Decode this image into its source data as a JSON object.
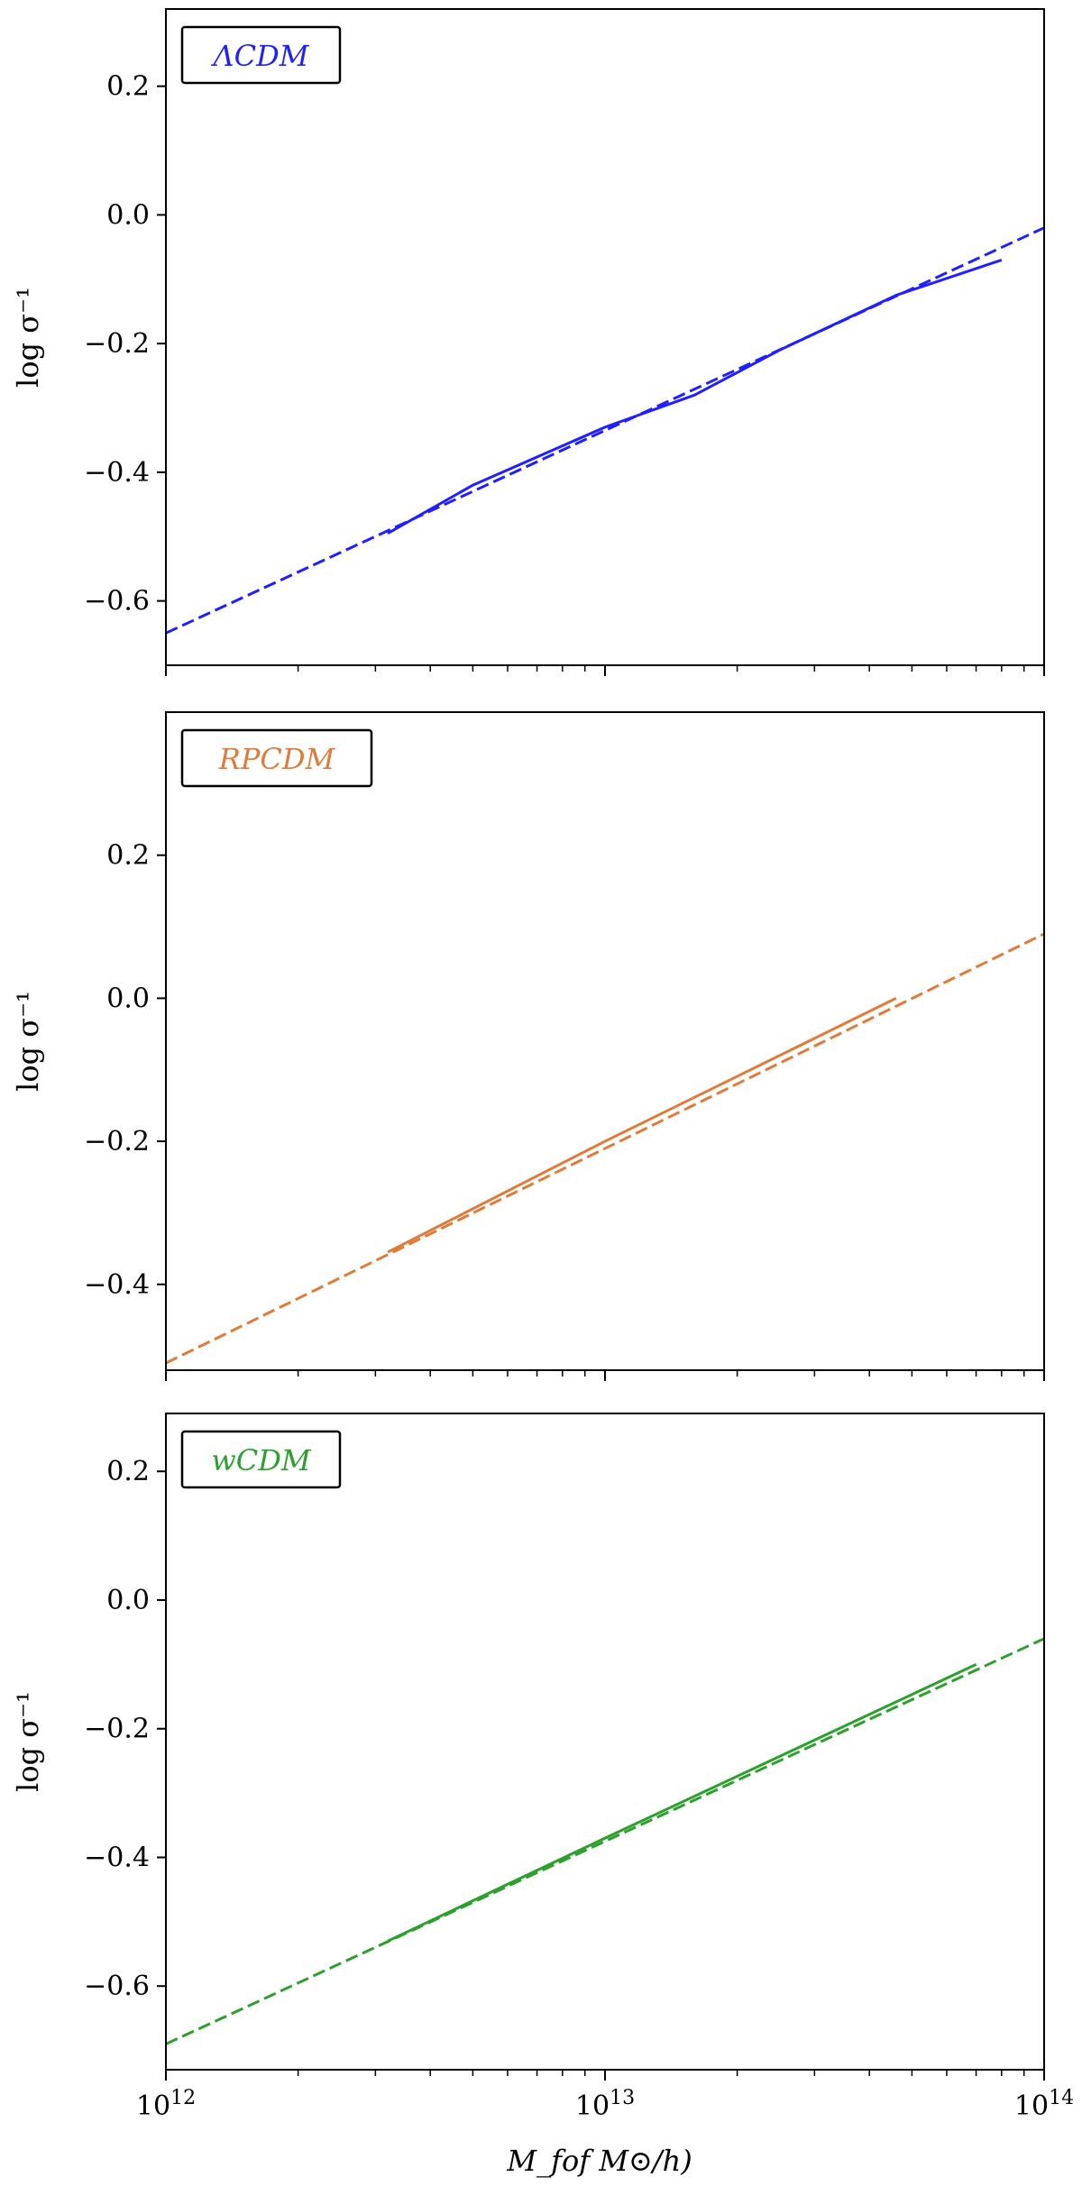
{
  "chart_data": [
    {
      "type": "line",
      "legend": "ΛCDM",
      "legend_position": "top-left",
      "color": "#1f1fff",
      "xscale": "log",
      "xlim": [
        1000000000000.0,
        100000000000000.0
      ],
      "ylim": [
        -0.7,
        0.32
      ],
      "yticks": [
        "0.2",
        "0.0",
        "−0.2",
        "−0.4",
        "−0.6"
      ],
      "ytick_values": [
        0.2,
        0.0,
        -0.2,
        -0.4,
        -0.6
      ],
      "ylabel": "log σ⁻¹",
      "xlabel": "",
      "series": [
        {
          "style": "dashed",
          "x": [
            1000000000000.0,
            100000000000000.0
          ],
          "y": [
            -0.65,
            -0.02
          ]
        },
        {
          "style": "solid",
          "x": [
            3200000000000.0,
            5000000000000.0,
            10000000000000.0,
            16000000000000.0,
            25000000000000.0,
            46000000000000.0,
            80000000000000.0
          ],
          "y": [
            -0.495,
            -0.42,
            -0.33,
            -0.28,
            -0.21,
            -0.125,
            -0.07
          ]
        }
      ]
    },
    {
      "type": "line",
      "legend": "RPCDM",
      "legend_position": "top-left",
      "color": "#e07b39",
      "xscale": "log",
      "xlim": [
        1000000000000.0,
        100000000000000.0
      ],
      "ylim": [
        -0.52,
        0.4
      ],
      "yticks": [
        "0.2",
        "0.0",
        "−0.2",
        "−0.4"
      ],
      "ytick_values": [
        0.2,
        0.0,
        -0.2,
        -0.4
      ],
      "ylabel": "log σ⁻¹",
      "xlabel": "",
      "series": [
        {
          "style": "dashed",
          "x": [
            1000000000000.0,
            100000000000000.0
          ],
          "y": [
            -0.51,
            0.09
          ]
        },
        {
          "style": "solid",
          "x": [
            3200000000000.0,
            10000000000000.0,
            46000000000000.0
          ],
          "y": [
            -0.355,
            -0.2,
            0.0
          ]
        }
      ]
    },
    {
      "type": "line",
      "legend": "wCDM",
      "legend_position": "top-left",
      "color": "#2ca02c",
      "xscale": "log",
      "xlim": [
        1000000000000.0,
        100000000000000.0
      ],
      "ylim": [
        -0.73,
        0.29
      ],
      "yticks": [
        "0.2",
        "0.0",
        "−0.2",
        "−0.4",
        "−0.6"
      ],
      "ytick_values": [
        0.2,
        0.0,
        -0.2,
        -0.4,
        -0.6
      ],
      "ylabel": "log σ⁻¹",
      "xticks": [
        "10¹²",
        "10¹³",
        "10¹⁴"
      ],
      "xtick_values": [
        1000000000000.0,
        10000000000000.0,
        100000000000000.0
      ],
      "xlabel": "M_fof M⊙/h)",
      "series": [
        {
          "style": "dashed",
          "x": [
            1000000000000.0,
            100000000000000.0
          ],
          "y": [
            -0.69,
            -0.06
          ]
        },
        {
          "style": "solid",
          "x": [
            3200000000000.0,
            10000000000000.0,
            70000000000000.0
          ],
          "y": [
            -0.53,
            -0.37,
            -0.1
          ]
        }
      ]
    }
  ]
}
